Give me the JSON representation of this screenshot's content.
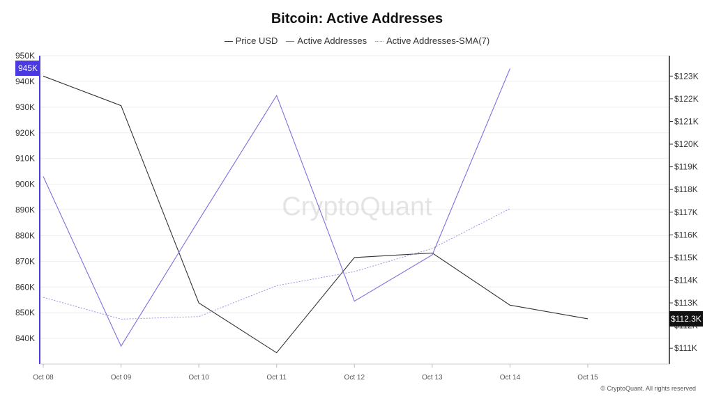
{
  "chart_data": {
    "type": "line",
    "title": "Bitcoin: Active Addresses",
    "categories": [
      "Oct 08",
      "Oct 09",
      "Oct 10",
      "Oct 11",
      "Oct 12",
      "Oct 13",
      "Oct 14",
      "Oct 15"
    ],
    "series": [
      {
        "name": "Price USD",
        "axis": "right",
        "color": "#333333",
        "style": "solid",
        "values": [
          123000,
          121700,
          113000,
          110800,
          115000,
          115200,
          112900,
          112300
        ]
      },
      {
        "name": "Active Addresses",
        "axis": "left",
        "color": "#7b6fe0",
        "style": "solid",
        "values": [
          903000,
          837000,
          886000,
          934500,
          854500,
          872500,
          945000,
          null
        ]
      },
      {
        "name": "Active Addresses-SMA(7)",
        "axis": "left",
        "color": "#9b92e8",
        "style": "dotted",
        "values": [
          856000,
          847500,
          848500,
          860500,
          866000,
          875000,
          890500,
          null
        ]
      }
    ],
    "left_axis": {
      "ylim": [
        830000,
        950000
      ],
      "ticks": [
        "840K",
        "850K",
        "860K",
        "870K",
        "880K",
        "890K",
        "900K",
        "910K",
        "920K",
        "930K",
        "940K",
        "950K"
      ],
      "tick_values": [
        840000,
        850000,
        860000,
        870000,
        880000,
        890000,
        900000,
        910000,
        920000,
        930000,
        940000,
        950000
      ],
      "badge": "945K",
      "badge_value": 945000,
      "badge_color": "#4a3ae0"
    },
    "right_axis": {
      "ylim": [
        110300,
        123900
      ],
      "ticks": [
        "$111K",
        "$112K",
        "$113K",
        "$114K",
        "$115K",
        "$116K",
        "$117K",
        "$118K",
        "$119K",
        "$120K",
        "$121K",
        "$122K",
        "$123K"
      ],
      "tick_values": [
        111000,
        112000,
        113000,
        114000,
        115000,
        116000,
        117000,
        118000,
        119000,
        120000,
        121000,
        122000,
        123000
      ],
      "badge": "$112.3K",
      "badge_value": 112300,
      "badge_color": "#111111"
    },
    "grid": true,
    "legend_position": "top-center"
  },
  "watermark": "CryptoQuant",
  "copyright": "© CryptoQuant. All rights reserved"
}
